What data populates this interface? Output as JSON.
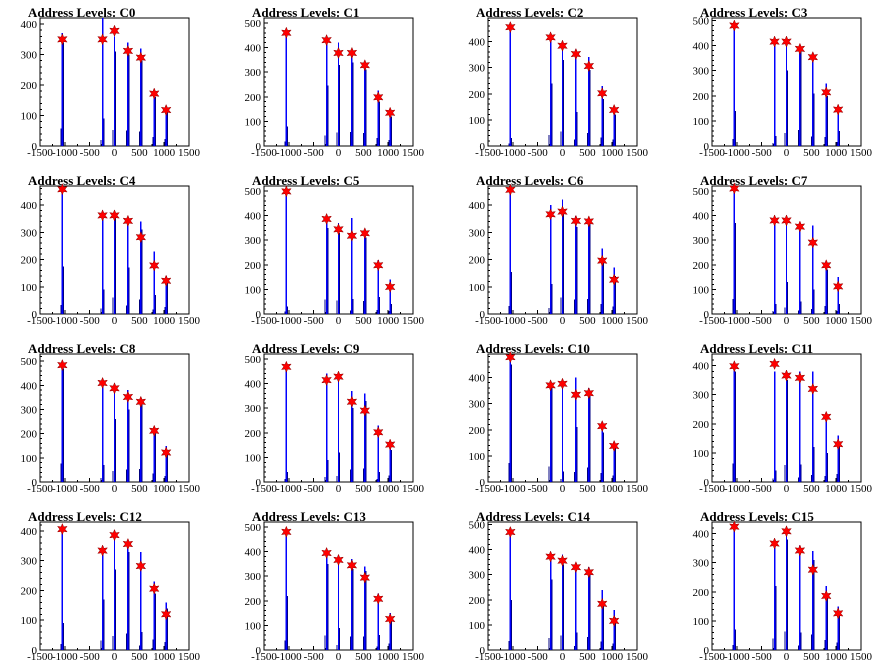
{
  "colors": {
    "bar": "#0000ff",
    "marker": "#ff0000",
    "axis": "#000000"
  },
  "chart_data": [
    {
      "title": "Address Levels: C0",
      "type": "bar",
      "xlim": [
        -1500,
        1500
      ],
      "ylim": [
        0,
        420
      ],
      "yticks": [
        0,
        100,
        200,
        300,
        400
      ],
      "xticks": [
        "-1500",
        "-1000",
        "-500",
        "0",
        "500",
        "1000",
        "1500"
      ],
      "series": {
        "x": [
          -1050,
          -240,
          0,
          270,
          530,
          800,
          1040
        ],
        "height": [
          370,
          420,
          360,
          340,
          320,
          185,
          130
        ],
        "secondary": [
          340,
          90,
          310,
          300,
          280,
          160,
          110
        ]
      },
      "markers": {
        "x": [
          -1050,
          -240,
          0,
          270,
          530,
          800,
          1040
        ],
        "y": [
          350,
          350,
          378,
          312,
          290,
          172,
          118
        ]
      }
    },
    {
      "title": "Address Levels: C1",
      "type": "bar",
      "xlim": [
        -1500,
        1500
      ],
      "ylim": [
        0,
        520
      ],
      "yticks": [
        0,
        100,
        200,
        300,
        400,
        500
      ],
      "xticks": [
        "-1500",
        "-1000",
        "-500",
        "0",
        "500",
        "1000",
        "1500"
      ],
      "series": {
        "x": [
          -1050,
          -240,
          0,
          270,
          530,
          800,
          1040
        ],
        "height": [
          470,
          440,
          420,
          390,
          340,
          225,
          150
        ],
        "secondary": [
          80,
          245,
          330,
          340,
          310,
          180,
          120
        ]
      },
      "markers": {
        "x": [
          -1050,
          -240,
          0,
          270,
          530,
          800,
          1040
        ],
        "y": [
          460,
          430,
          378,
          378,
          328,
          198,
          135
        ]
      }
    },
    {
      "title": "Address Levels: C2",
      "type": "bar",
      "xlim": [
        -1500,
        1500
      ],
      "ylim": [
        0,
        490
      ],
      "yticks": [
        0,
        100,
        200,
        300,
        400
      ],
      "xticks": [
        "-1500",
        "-1000",
        "-500",
        "0",
        "500",
        "1000",
        "1500"
      ],
      "series": {
        "x": [
          -1050,
          -240,
          0,
          270,
          530,
          800,
          1040
        ],
        "height": [
          460,
          430,
          400,
          370,
          340,
          230,
          150
        ],
        "secondary": [
          30,
          240,
          330,
          130,
          290,
          180,
          120
        ]
      },
      "markers": {
        "x": [
          -1050,
          -240,
          0,
          270,
          530,
          800,
          1040
        ],
        "y": [
          455,
          416,
          384,
          352,
          306,
          202,
          138
        ]
      }
    },
    {
      "title": "Address Levels: C3",
      "type": "bar",
      "xlim": [
        -1500,
        1500
      ],
      "ylim": [
        0,
        510
      ],
      "yticks": [
        0,
        100,
        200,
        300,
        400,
        500
      ],
      "xticks": [
        "-1500",
        "-1000",
        "-500",
        "0",
        "500",
        "1000",
        "1500"
      ],
      "series": {
        "x": [
          -1050,
          -240,
          0,
          270,
          530,
          800,
          1040
        ],
        "height": [
          490,
          430,
          430,
          400,
          370,
          250,
          160
        ],
        "secondary": [
          140,
          40,
          300,
          380,
          210,
          200,
          60
        ]
      },
      "markers": {
        "x": [
          -1050,
          -240,
          0,
          270,
          530,
          800,
          1040
        ],
        "y": [
          480,
          416,
          416,
          387,
          354,
          214,
          145
        ]
      }
    },
    {
      "title": "Address Levels: C4",
      "type": "bar",
      "xlim": [
        -1500,
        1500
      ],
      "ylim": [
        0,
        470
      ],
      "yticks": [
        0,
        100,
        200,
        300,
        400
      ],
      "xticks": [
        "-1500",
        "-1000",
        "-500",
        "0",
        "500",
        "1000",
        "1500"
      ],
      "series": {
        "x": [
          -1050,
          -240,
          0,
          270,
          530,
          800,
          1040
        ],
        "height": [
          460,
          370,
          370,
          350,
          340,
          230,
          140
        ],
        "secondary": [
          175,
          90,
          360,
          170,
          310,
          70,
          130
        ]
      },
      "markers": {
        "x": [
          -1050,
          -240,
          0,
          270,
          530,
          800,
          1040
        ],
        "y": [
          458,
          362,
          362,
          342,
          282,
          178,
          122
        ]
      }
    },
    {
      "title": "Address Levels: C5",
      "type": "bar",
      "xlim": [
        -1500,
        1500
      ],
      "ylim": [
        0,
        520
      ],
      "yticks": [
        0,
        100,
        200,
        300,
        400,
        500
      ],
      "xticks": [
        "-1500",
        "-1000",
        "-500",
        "0",
        "500",
        "1000",
        "1500"
      ],
      "series": {
        "x": [
          -1050,
          -240,
          0,
          270,
          530,
          800,
          1040
        ],
        "height": [
          500,
          400,
          370,
          390,
          340,
          220,
          140
        ],
        "secondary": [
          30,
          350,
          330,
          60,
          310,
          70,
          40
        ]
      },
      "markers": {
        "x": [
          -1050,
          -240,
          0,
          270,
          530,
          800,
          1040
        ],
        "y": [
          498,
          386,
          344,
          318,
          328,
          198,
          110
        ]
      }
    },
    {
      "title": "Address Levels: C6",
      "type": "bar",
      "xlim": [
        -1500,
        1500
      ],
      "ylim": [
        0,
        470
      ],
      "yticks": [
        0,
        100,
        200,
        300,
        400
      ],
      "xticks": [
        "-1500",
        "-1000",
        "-500",
        "0",
        "500",
        "1000",
        "1500"
      ],
      "series": {
        "x": [
          -1050,
          -240,
          0,
          270,
          530,
          800,
          1040
        ],
        "height": [
          460,
          400,
          420,
          360,
          340,
          240,
          170
        ],
        "secondary": [
          155,
          110,
          370,
          320,
          330,
          200,
          140
        ]
      },
      "markers": {
        "x": [
          -1050,
          -240,
          0,
          270,
          530,
          800,
          1040
        ],
        "y": [
          456,
          366,
          376,
          342,
          340,
          196,
          126
        ]
      }
    },
    {
      "title": "Address Levels: C7",
      "type": "bar",
      "xlim": [
        -1500,
        1500
      ],
      "ylim": [
        0,
        520
      ],
      "yticks": [
        0,
        100,
        200,
        300,
        400,
        500
      ],
      "xticks": [
        "-1500",
        "-1000",
        "-500",
        "0",
        "500",
        "1000",
        "1500"
      ],
      "series": {
        "x": [
          -1050,
          -240,
          0,
          270,
          530,
          800,
          1040
        ],
        "height": [
          510,
          380,
          390,
          360,
          360,
          200,
          150
        ],
        "secondary": [
          370,
          40,
          130,
          50,
          100,
          180,
          40
        ]
      },
      "markers": {
        "x": [
          -1050,
          -240,
          0,
          270,
          530,
          800,
          1040
        ],
        "y": [
          510,
          380,
          380,
          355,
          290,
          198,
          112
        ]
      }
    },
    {
      "title": "Address Levels: C8",
      "type": "bar",
      "xlim": [
        -1500,
        1500
      ],
      "ylim": [
        0,
        530
      ],
      "yticks": [
        0,
        100,
        200,
        300,
        400,
        500
      ],
      "xticks": [
        "-1500",
        "-1000",
        "-500",
        "0",
        "500",
        "1000",
        "1500"
      ],
      "series": {
        "x": [
          -1050,
          -240,
          0,
          270,
          530,
          800,
          1040
        ],
        "height": [
          500,
          420,
          400,
          380,
          340,
          215,
          150
        ],
        "secondary": [
          470,
          70,
          260,
          300,
          320,
          200,
          130
        ]
      },
      "markers": {
        "x": [
          -1050,
          -240,
          0,
          270,
          530,
          800,
          1040
        ],
        "y": [
          484,
          410,
          388,
          352,
          332,
          212,
          122
        ]
      }
    },
    {
      "title": "Address Levels: C9",
      "type": "bar",
      "xlim": [
        -1500,
        1500
      ],
      "ylim": [
        0,
        520
      ],
      "yticks": [
        0,
        100,
        200,
        300,
        400,
        500
      ],
      "xticks": [
        "-1500",
        "-1000",
        "-500",
        "0",
        "500",
        "1000",
        "1500"
      ],
      "series": {
        "x": [
          -1050,
          -240,
          0,
          270,
          530,
          800,
          1040
        ],
        "height": [
          480,
          440,
          430,
          370,
          360,
          230,
          160
        ],
        "secondary": [
          40,
          90,
          120,
          300,
          330,
          40,
          130
        ]
      },
      "markers": {
        "x": [
          -1050,
          -240,
          0,
          270,
          530,
          800,
          1040
        ],
        "y": [
          468,
          414,
          428,
          326,
          290,
          202,
          152
        ]
      }
    },
    {
      "title": "Address Levels: C10",
      "type": "bar",
      "xlim": [
        -1500,
        1500
      ],
      "ylim": [
        0,
        490
      ],
      "yticks": [
        0,
        100,
        200,
        300,
        400
      ],
      "xticks": [
        "-1500",
        "-1000",
        "-500",
        "0",
        "500",
        "1000",
        "1500"
      ],
      "series": {
        "x": [
          -1050,
          -240,
          0,
          270,
          530,
          800,
          1040
        ],
        "height": [
          480,
          380,
          390,
          400,
          360,
          230,
          150
        ],
        "secondary": [
          450,
          360,
          40,
          210,
          330,
          190,
          130
        ]
      },
      "markers": {
        "x": [
          -1050,
          -240,
          0,
          270,
          530,
          800,
          1040
        ],
        "y": [
          478,
          370,
          376,
          334,
          340,
          214,
          138
        ]
      }
    },
    {
      "title": "Address Levels: C11",
      "type": "bar",
      "xlim": [
        -1500,
        1500
      ],
      "ylim": [
        0,
        440
      ],
      "yticks": [
        0,
        100,
        200,
        300,
        400
      ],
      "xticks": [
        "-1500",
        "-1000",
        "-500",
        "0",
        "500",
        "1000",
        "1500"
      ],
      "series": {
        "x": [
          -1050,
          -240,
          0,
          270,
          530,
          800,
          1040
        ],
        "height": [
          410,
          380,
          380,
          380,
          380,
          230,
          160
        ],
        "secondary": [
          380,
          40,
          350,
          60,
          120,
          100,
          140
        ]
      },
      "markers": {
        "x": [
          -1050,
          -240,
          0,
          270,
          530,
          800,
          1040
        ],
        "y": [
          398,
          406,
          366,
          358,
          320,
          224,
          130
        ]
      }
    },
    {
      "title": "Address Levels: C12",
      "type": "bar",
      "xlim": [
        -1500,
        1500
      ],
      "ylim": [
        0,
        430
      ],
      "yticks": [
        0,
        100,
        200,
        300,
        400
      ],
      "xticks": [
        "-1500",
        "-1000",
        "-500",
        "0",
        "500",
        "1000",
        "1500"
      ],
      "series": {
        "x": [
          -1050,
          -240,
          0,
          270,
          530,
          800,
          1040
        ],
        "height": [
          410,
          350,
          400,
          360,
          330,
          230,
          160
        ],
        "secondary": [
          90,
          170,
          270,
          330,
          60,
          190,
          140
        ]
      },
      "markers": {
        "x": [
          -1050,
          -240,
          0,
          270,
          530,
          800,
          1040
        ],
        "y": [
          406,
          334,
          386,
          356,
          282,
          206,
          120
        ]
      }
    },
    {
      "title": "Address Levels: C13",
      "type": "bar",
      "xlim": [
        -1500,
        1500
      ],
      "ylim": [
        0,
        520
      ],
      "yticks": [
        0,
        100,
        200,
        300,
        400,
        500
      ],
      "xticks": [
        "-1500",
        "-1000",
        "-500",
        "0",
        "500",
        "1000",
        "1500"
      ],
      "series": {
        "x": [
          -1050,
          -240,
          0,
          270,
          530,
          800,
          1040
        ],
        "height": [
          490,
          400,
          380,
          370,
          340,
          230,
          150
        ],
        "secondary": [
          220,
          350,
          90,
          330,
          320,
          60,
          130
        ]
      },
      "markers": {
        "x": [
          -1050,
          -240,
          0,
          270,
          530,
          800,
          1040
        ],
        "y": [
          480,
          394,
          366,
          344,
          294,
          208,
          126
        ]
      }
    },
    {
      "title": "Address Levels: C14",
      "type": "bar",
      "xlim": [
        -1500,
        1500
      ],
      "ylim": [
        0,
        510
      ],
      "yticks": [
        0,
        100,
        200,
        300,
        400,
        500
      ],
      "xticks": [
        "-1500",
        "-1000",
        "-500",
        "0",
        "500",
        "1000",
        "1500"
      ],
      "series": {
        "x": [
          -1050,
          -240,
          0,
          270,
          530,
          800,
          1040
        ],
        "height": [
          480,
          380,
          380,
          340,
          330,
          240,
          160
        ],
        "secondary": [
          200,
          280,
          340,
          70,
          300,
          180,
          130
        ]
      },
      "markers": {
        "x": [
          -1050,
          -240,
          0,
          270,
          530,
          800,
          1040
        ],
        "y": [
          470,
          372,
          356,
          330,
          310,
          184,
          116
        ]
      }
    },
    {
      "title": "Address Levels: C15",
      "type": "bar",
      "xlim": [
        -1500,
        1500
      ],
      "ylim": [
        0,
        440
      ],
      "yticks": [
        0,
        100,
        200,
        300,
        400
      ],
      "xticks": [
        "-1500",
        "-1000",
        "-500",
        "0",
        "500",
        "1000",
        "1500"
      ],
      "series": {
        "x": [
          -1050,
          -240,
          0,
          270,
          530,
          800,
          1040
        ],
        "height": [
          430,
          380,
          420,
          360,
          340,
          220,
          150
        ],
        "secondary": [
          70,
          220,
          380,
          60,
          310,
          190,
          130
        ]
      },
      "markers": {
        "x": [
          -1050,
          -240,
          0,
          270,
          530,
          800,
          1040
        ],
        "y": [
          424,
          366,
          408,
          342,
          276,
          186,
          126
        ]
      }
    }
  ]
}
